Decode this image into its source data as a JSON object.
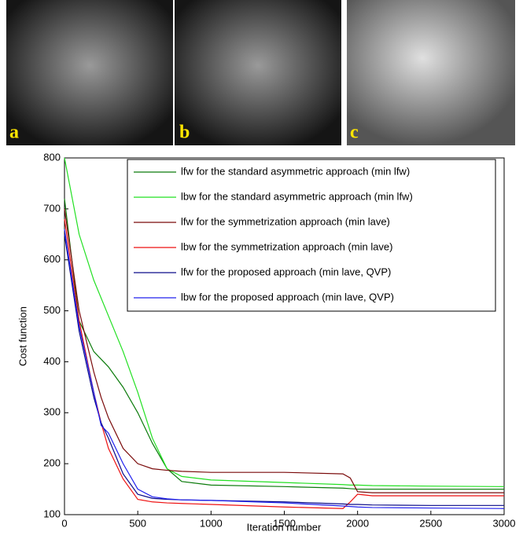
{
  "panels": [
    {
      "label": "a"
    },
    {
      "label": "b"
    },
    {
      "label": "c"
    }
  ],
  "chart_data": {
    "type": "line",
    "xlabel": "Iteration number",
    "ylabel": "Cost function",
    "x": [
      0,
      100,
      200,
      250,
      300,
      400,
      500,
      600,
      700,
      800,
      1000,
      1500,
      1900,
      1950,
      2000,
      2100,
      2500,
      3000
    ],
    "xlim": [
      0,
      3000
    ],
    "xticks": [
      0,
      500,
      1000,
      1500,
      2000,
      2500,
      3000
    ],
    "ylim": [
      100,
      800
    ],
    "yticks": [
      100,
      200,
      300,
      400,
      500,
      600,
      700,
      800
    ],
    "legend": "upper right",
    "series": [
      {
        "name": "lfw for the standard asymmetric approach (min lfw)",
        "color": "#0a7a0a",
        "values": [
          720,
          480,
          420,
          405,
          390,
          350,
          300,
          240,
          190,
          165,
          158,
          155,
          152,
          151,
          150,
          150,
          150,
          150
        ]
      },
      {
        "name": "lbw for the standard asymmetric approach (min lfw)",
        "color": "#22e022",
        "values": [
          800,
          650,
          560,
          525,
          490,
          420,
          340,
          250,
          190,
          175,
          168,
          163,
          159,
          158,
          158,
          157,
          156,
          155
        ]
      },
      {
        "name": "lfw for the symmetrization approach (min lave)",
        "color": "#7a0a0a",
        "values": [
          700,
          500,
          380,
          330,
          290,
          230,
          200,
          190,
          187,
          185,
          183,
          183,
          180,
          172,
          145,
          143,
          143,
          143
        ]
      },
      {
        "name": "lbw for the symmetrization approach (min lave)",
        "color": "#ee1111",
        "values": [
          680,
          480,
          340,
          280,
          230,
          170,
          130,
          125,
          123,
          122,
          120,
          115,
          112,
          125,
          140,
          137,
          137,
          137
        ]
      },
      {
        "name": "lfw for the proposed approach (min lave, QVP)",
        "color": "#0a0a8a",
        "values": [
          650,
          460,
          330,
          280,
          250,
          180,
          140,
          132,
          130,
          129,
          128,
          125,
          121,
          120,
          120,
          119,
          118,
          118
        ]
      },
      {
        "name": "lbw for the proposed approach (min lave, QVP)",
        "color": "#2020ee",
        "values": [
          660,
          470,
          340,
          275,
          260,
          200,
          150,
          135,
          131,
          129,
          128,
          123,
          117,
          116,
          115,
          114,
          113,
          112
        ]
      }
    ]
  }
}
